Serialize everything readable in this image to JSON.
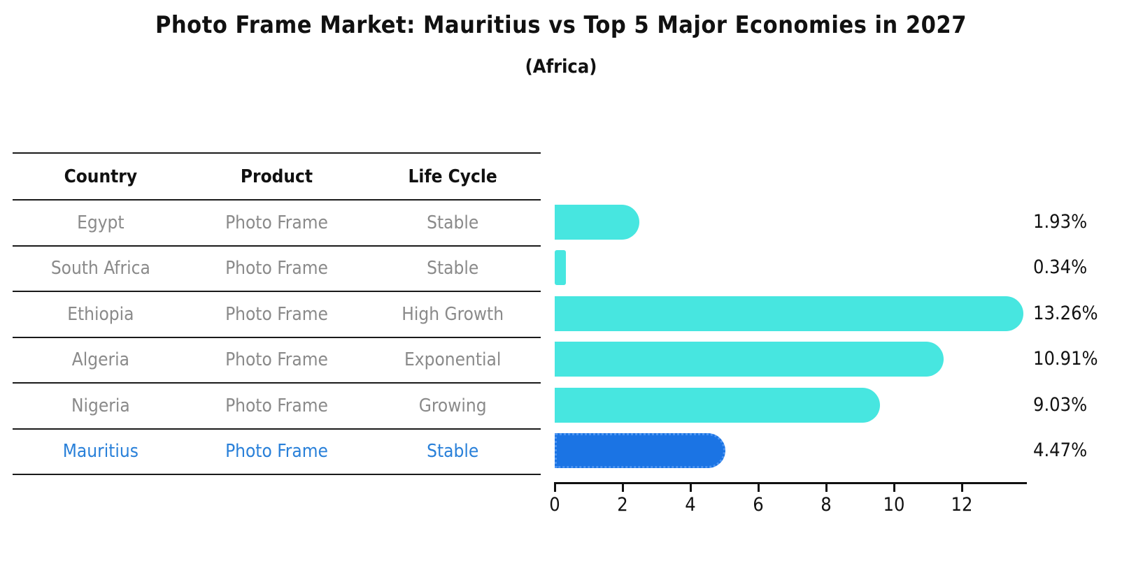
{
  "title": "Photo Frame Market: Mauritius vs Top 5 Major Economies in 2027",
  "subtitle": "(Africa)",
  "table": {
    "headers": [
      "Country",
      "Product",
      "Life Cycle"
    ],
    "rows": [
      {
        "country": "Egypt",
        "product": "Photo Frame",
        "life_cycle": "Stable",
        "highlight": false
      },
      {
        "country": "South Africa",
        "product": "Photo Frame",
        "life_cycle": "Stable",
        "highlight": false
      },
      {
        "country": "Ethiopia",
        "product": "Photo Frame",
        "life_cycle": "High Growth",
        "highlight": false
      },
      {
        "country": "Algeria",
        "product": "Photo Frame",
        "life_cycle": "Exponential",
        "highlight": false
      },
      {
        "country": "Nigeria",
        "product": "Photo Frame",
        "life_cycle": "Growing",
        "highlight": false
      },
      {
        "country": "Mauritius",
        "product": "Photo Frame",
        "life_cycle": "Stable",
        "highlight": true
      }
    ]
  },
  "chart_data": {
    "type": "bar",
    "orientation": "horizontal",
    "title": "Photo Frame Market: Mauritius vs Top 5 Major Economies in 2027",
    "subtitle": "(Africa)",
    "categories": [
      "Egypt",
      "South Africa",
      "Ethiopia",
      "Algeria",
      "Nigeria",
      "Mauritius"
    ],
    "values": [
      1.93,
      0.34,
      13.26,
      10.91,
      9.03,
      4.47
    ],
    "value_labels": [
      "1.93%",
      "0.34%",
      "13.26%",
      "10.91%",
      "9.03%",
      "4.47%"
    ],
    "x_ticks": [
      0,
      2,
      4,
      6,
      8,
      10,
      12
    ],
    "xlim": [
      0,
      13.92
    ],
    "grid": false,
    "legend": false,
    "bar_color": "#47e6e0",
    "highlight_index": 5,
    "highlight_bar_color": "#1b74e4",
    "highlight_border_color": "#4d95f2",
    "highlight_text_color": "#2980d9",
    "row_text_color": "#8a8a8a",
    "axis_color": "#111111"
  }
}
